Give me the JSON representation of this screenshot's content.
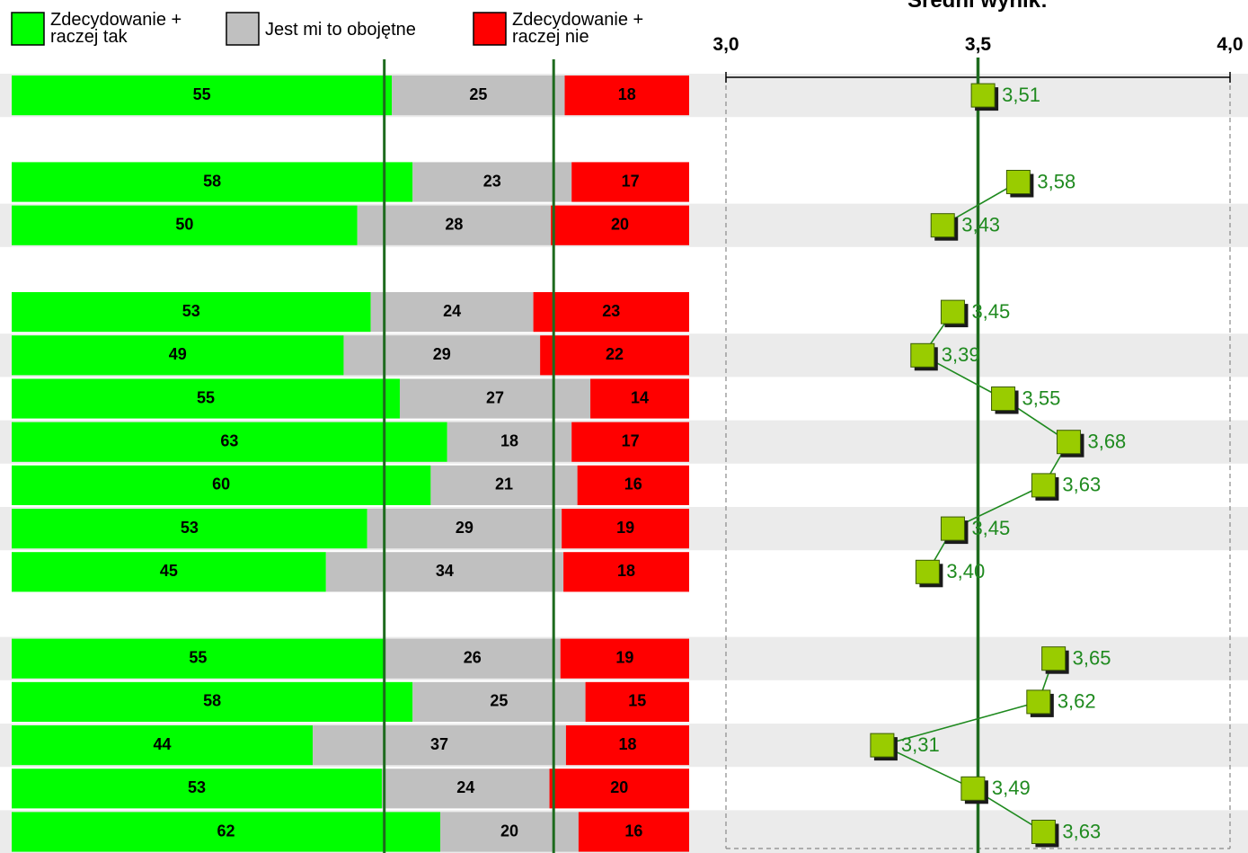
{
  "chart_data": [
    {
      "type": "bar",
      "subtype": "stacked-horizontal-100",
      "legend": {
        "placement": "top",
        "entries": [
          {
            "label_lines": [
              "Zdecydowanie +",
              "raczej tak"
            ],
            "color": "#00ff00"
          },
          {
            "label_lines": [
              "Jest mi to obojętne"
            ],
            "color": "#c0c0c0"
          },
          {
            "label_lines": [
              "Zdecydowanie +",
              "raczej nie"
            ],
            "color": "#ff0000"
          }
        ]
      },
      "colors": {
        "tak": "#00ff00",
        "obojetne": "#c0c0c0",
        "nie": "#ff0000",
        "reference_line": "#1e6b1e"
      },
      "groups": [
        [
          {
            "tak": 55,
            "obojetne": 25,
            "nie": 18
          }
        ],
        [
          {
            "tak": 58,
            "obojetne": 23,
            "nie": 17
          },
          {
            "tak": 50,
            "obojetne": 28,
            "nie": 20
          }
        ],
        [
          {
            "tak": 53,
            "obojetne": 24,
            "nie": 23
          },
          {
            "tak": 49,
            "obojetne": 29,
            "nie": 22
          },
          {
            "tak": 55,
            "obojetne": 27,
            "nie": 14
          },
          {
            "tak": 63,
            "obojetne": 18,
            "nie": 17
          },
          {
            "tak": 60,
            "obojetne": 21,
            "nie": 16
          },
          {
            "tak": 53,
            "obojetne": 29,
            "nie": 19
          },
          {
            "tak": 45,
            "obojetne": 34,
            "nie": 18
          }
        ],
        [
          {
            "tak": 55,
            "obojetne": 26,
            "nie": 19
          },
          {
            "tak": 58,
            "obojetne": 25,
            "nie": 15
          },
          {
            "tak": 44,
            "obojetne": 37,
            "nie": 18
          },
          {
            "tak": 53,
            "obojetne": 24,
            "nie": 20
          },
          {
            "tak": 62,
            "obojetne": 20,
            "nie": 16
          }
        ]
      ],
      "reference_lines_percent": [
        55,
        80
      ]
    },
    {
      "type": "line",
      "title": "Średni wynik:",
      "xlim": [
        3.0,
        4.0
      ],
      "ticks": [
        "3,0",
        "3,5",
        "4,0"
      ],
      "tick_values": [
        3.0,
        3.5,
        4.0
      ],
      "reference_value": 3.5,
      "colors": {
        "marker": "#99cc00",
        "line": "#1f8a1f",
        "label": "#1f8a1f",
        "band": "#ebebeb"
      },
      "groups": [
        [
          {
            "value": 3.51,
            "label": "3,51"
          }
        ],
        [
          {
            "value": 3.58,
            "label": "3,58"
          },
          {
            "value": 3.43,
            "label": "3,43"
          }
        ],
        [
          {
            "value": 3.45,
            "label": "3,45"
          },
          {
            "value": 3.39,
            "label": "3,39"
          },
          {
            "value": 3.55,
            "label": "3,55"
          },
          {
            "value": 3.68,
            "label": "3,68"
          },
          {
            "value": 3.63,
            "label": "3,63"
          },
          {
            "value": 3.45,
            "label": "3,45"
          },
          {
            "value": 3.4,
            "label": "3,40"
          }
        ],
        [
          {
            "value": 3.65,
            "label": "3,65"
          },
          {
            "value": 3.62,
            "label": "3,62"
          },
          {
            "value": 3.31,
            "label": "3,31"
          },
          {
            "value": 3.49,
            "label": "3,49"
          },
          {
            "value": 3.63,
            "label": "3,63"
          }
        ]
      ]
    }
  ]
}
